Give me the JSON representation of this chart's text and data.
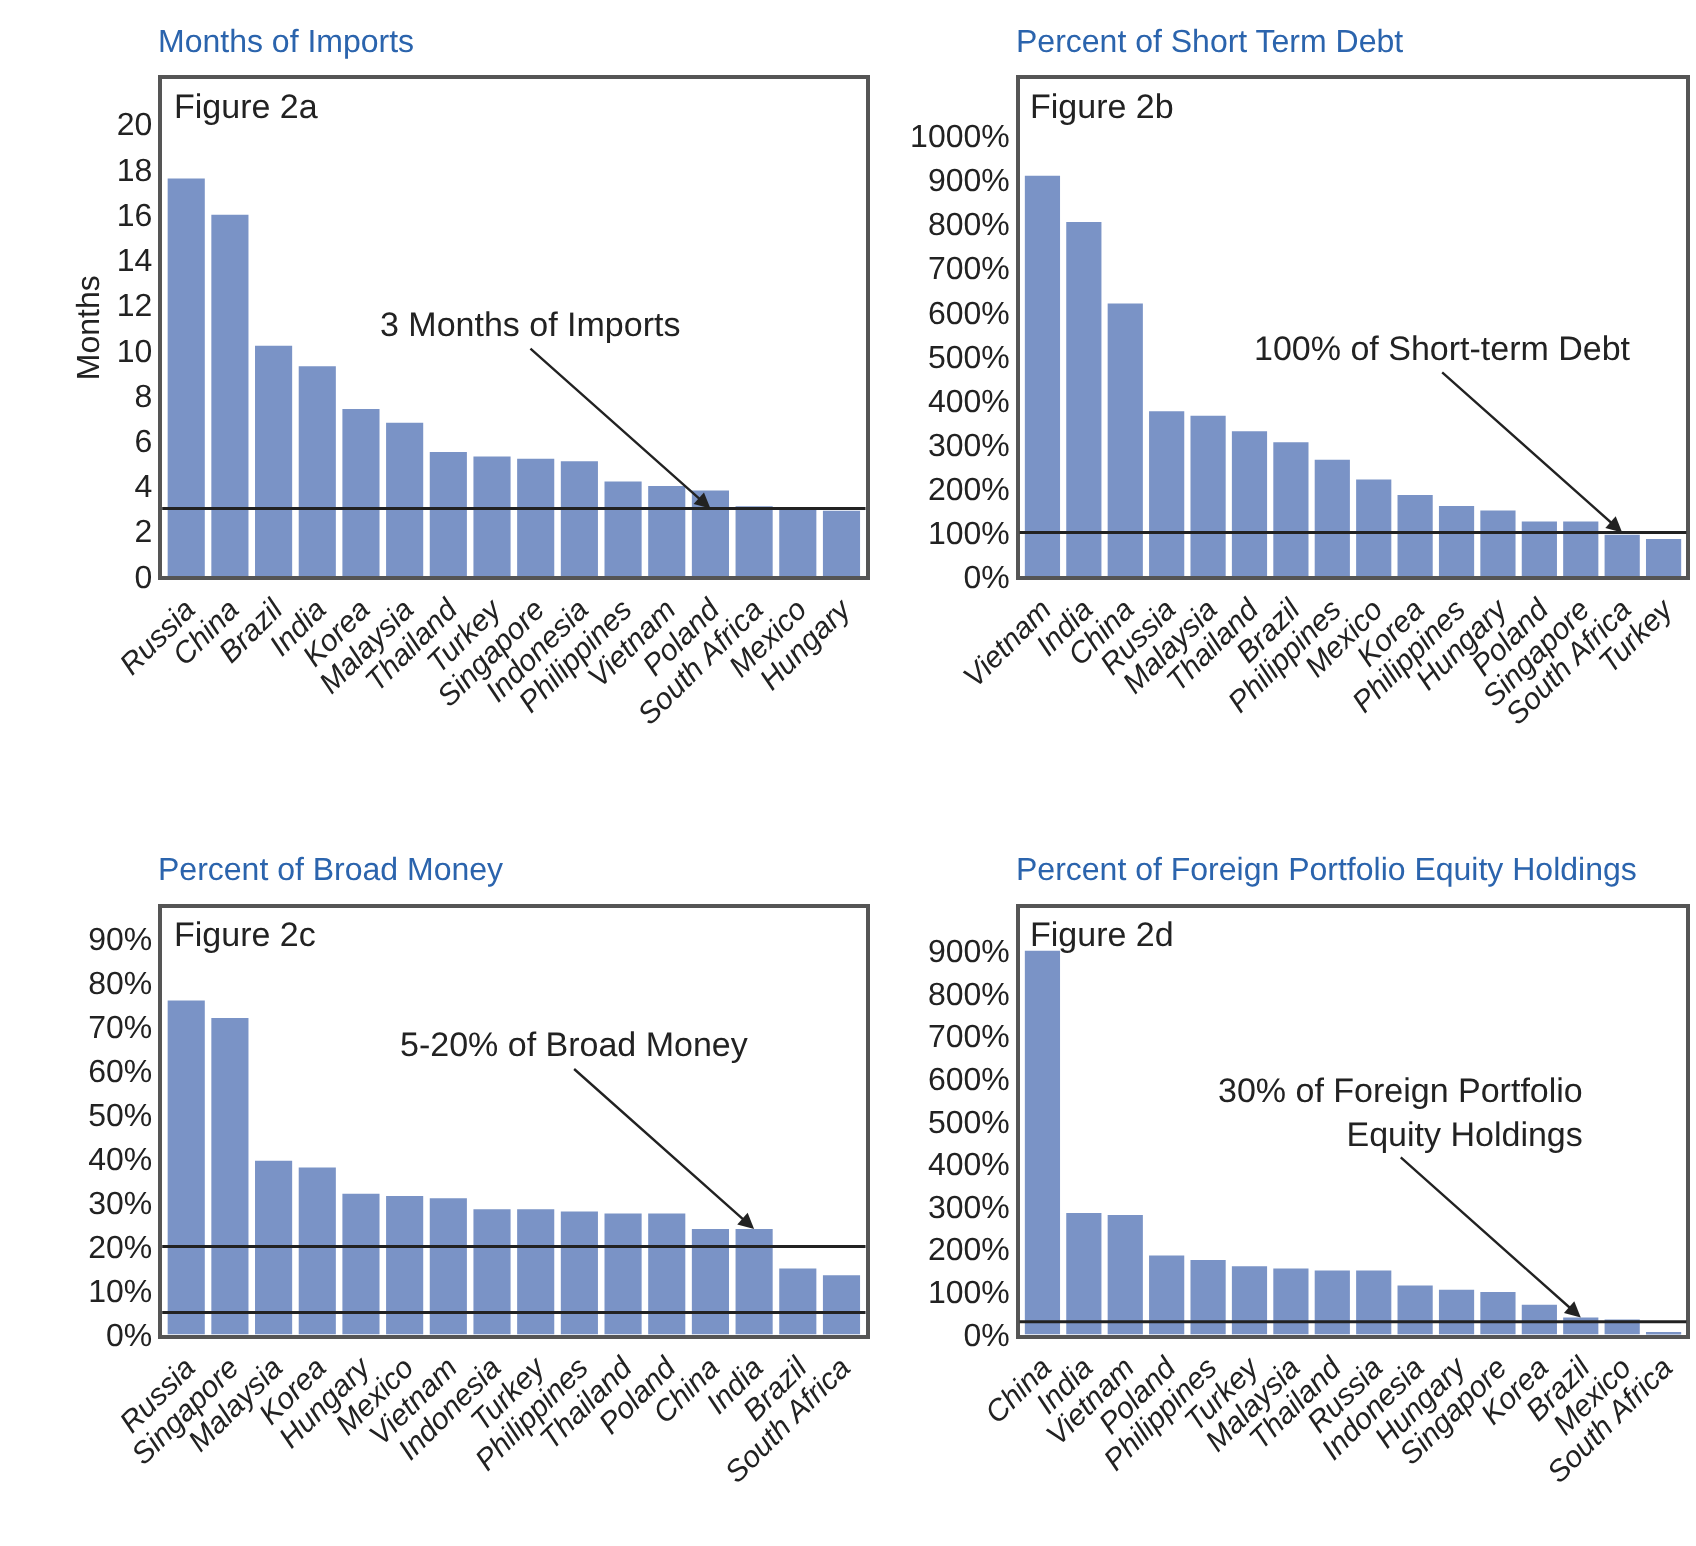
{
  "chart_data": [
    {
      "type": "bar",
      "title": "Months of Imports",
      "ylabel": "Months",
      "color": "#7a93c6",
      "categories": [
        "Russia",
        "China",
        "Brazil",
        "India",
        "Korea",
        "Malaysia",
        "Thailand",
        "Turkey",
        "Singapore",
        "Indonesia",
        "Philippines",
        "Vietnam",
        "Poland",
        "South Africa",
        "Mexico",
        "Hungary"
      ],
      "values": [
        17.6,
        16.0,
        10.2,
        9.3,
        7.4,
        6.8,
        5.5,
        5.3,
        5.2,
        5.1,
        4.2,
        4.0,
        3.8,
        3.1,
        3.0,
        2.9
      ],
      "ylim": [
        0,
        22
      ],
      "yticks": [
        0,
        2,
        4,
        6,
        8,
        10,
        12,
        14,
        16,
        18,
        20
      ],
      "ref_lines": [
        {
          "axis": "y",
          "value": 3,
          "color": "#222222"
        }
      ],
      "annotations": [
        "Figure 2a",
        {
          "text": "3 Months of Imports",
          "x": "Poland",
          "y": 3
        }
      ]
    },
    {
      "type": "bar",
      "title": "Percent of Short Term Debt",
      "color": "#7a93c6",
      "categories": [
        "Vietnam",
        "India",
        "China",
        "Russia",
        "Malaysia",
        "Thailand",
        "Brazil",
        "Philippines",
        "Mexico",
        "Korea",
        "Philippines",
        "Hungary",
        "Poland",
        "Singapore",
        "South Africa",
        "Turkey"
      ],
      "values": [
        910,
        805,
        620,
        375,
        365,
        330,
        305,
        265,
        220,
        185,
        160,
        150,
        125,
        125,
        95,
        85
      ],
      "ylim": [
        0,
        1130
      ],
      "yticks": [
        {
          "value": 0,
          "label": "0%"
        },
        {
          "value": 100,
          "label": "100%"
        },
        {
          "value": 200,
          "label": "200%"
        },
        {
          "value": 300,
          "label": "300%"
        },
        {
          "value": 400,
          "label": "400%"
        },
        {
          "value": 500,
          "label": "500%"
        },
        {
          "value": 600,
          "label": "600%"
        },
        {
          "value": 700,
          "label": "700%"
        },
        {
          "value": 800,
          "label": "800%"
        },
        {
          "value": 900,
          "label": "900%"
        },
        {
          "value": 1000,
          "label": "1000%"
        }
      ],
      "ref_lines": [
        {
          "axis": "y",
          "value": 100,
          "color": "#222222"
        }
      ],
      "annotations": [
        "Figure 2b",
        {
          "text": "100% of Short-term Debt",
          "x": "South Africa",
          "y": 100
        }
      ]
    },
    {
      "type": "bar",
      "title": "Percent of Broad Money",
      "color": "#7a93c6",
      "categories": [
        "Russia",
        "Singapore",
        "Malaysia",
        "Korea",
        "Hungary",
        "Mexico",
        "Vietnam",
        "Indonesia",
        "Turkey",
        "Philippines",
        "Thailand",
        "Poland",
        "China",
        "India",
        "Brazil",
        "South Africa"
      ],
      "values": [
        76,
        72,
        39.5,
        38,
        32,
        31.5,
        31,
        28.5,
        28.5,
        28,
        27.5,
        27.5,
        24,
        24,
        15,
        13.5
      ],
      "ylim": [
        0,
        97
      ],
      "yticks": [
        {
          "value": 0,
          "label": "0%"
        },
        {
          "value": 10,
          "label": "10%"
        },
        {
          "value": 20,
          "label": "20%"
        },
        {
          "value": 30,
          "label": "30%"
        },
        {
          "value": 40,
          "label": "40%"
        },
        {
          "value": 50,
          "label": "50%"
        },
        {
          "value": 60,
          "label": "60%"
        },
        {
          "value": 70,
          "label": "70%"
        },
        {
          "value": 80,
          "label": "80%"
        },
        {
          "value": 90,
          "label": "90%"
        }
      ],
      "ref_lines": [
        {
          "axis": "y",
          "value": 20,
          "color": "#222222"
        },
        {
          "axis": "y",
          "value": 5,
          "color": "#222222"
        }
      ],
      "annotations": [
        "Figure 2c",
        {
          "text": "5-20% of Broad Money",
          "x": "India",
          "y": 24
        }
      ]
    },
    {
      "type": "bar",
      "title": "Percent of Foreign Portfolio Equity Holdings",
      "color": "#7a93c6",
      "categories": [
        "China",
        "India",
        "Vietnam",
        "Poland",
        "Philippines",
        "Turkey",
        "Malaysia",
        "Thailand",
        "Russia",
        "Indonesia",
        "Hungary",
        "Singapore",
        "Korea",
        "Brazil",
        "Mexico",
        "South Africa"
      ],
      "values": [
        900,
        285,
        280,
        185,
        175,
        160,
        155,
        150,
        150,
        115,
        105,
        100,
        70,
        40,
        35,
        5
      ],
      "ylim": [
        0,
        1000
      ],
      "yticks": [
        {
          "value": 0,
          "label": "0%"
        },
        {
          "value": 100,
          "label": "100%"
        },
        {
          "value": 200,
          "label": "200%"
        },
        {
          "value": 300,
          "label": "300%"
        },
        {
          "value": 400,
          "label": "400%"
        },
        {
          "value": 500,
          "label": "500%"
        },
        {
          "value": 600,
          "label": "600%"
        },
        {
          "value": 700,
          "label": "700%"
        },
        {
          "value": 800,
          "label": "800%"
        },
        {
          "value": 900,
          "label": "900%"
        }
      ],
      "ref_lines": [
        {
          "axis": "y",
          "value": 30,
          "color": "#222222"
        }
      ],
      "annotations": [
        "Figure 2d",
        {
          "text": "30% of Foreign Portfolio\nEquity Holdings",
          "x": "Brazil",
          "y": 40
        }
      ]
    }
  ]
}
